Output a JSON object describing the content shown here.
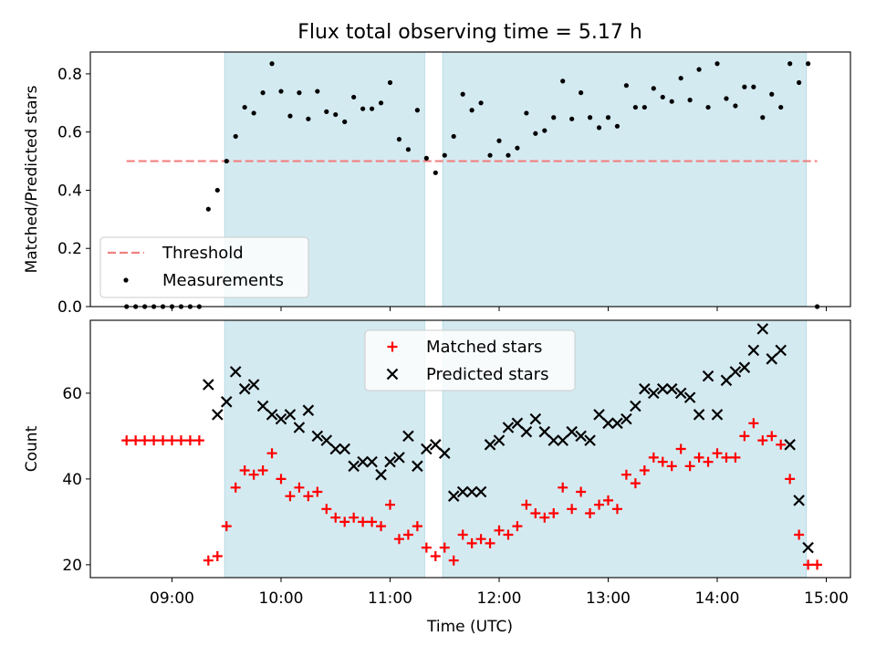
{
  "chart_data": {
    "type": "scatter",
    "title": "Flux total observing time = 5.17 h",
    "xlabel": "Time (UTC)",
    "x_ticks": [
      "09:00",
      "10:00",
      "11:00",
      "12:00",
      "13:00",
      "14:00",
      "15:00"
    ],
    "observing_windows": [
      [
        "09:29",
        "11:19"
      ],
      [
        "11:29",
        "14:49"
      ]
    ],
    "colors": {
      "window": "#d4eaf1",
      "threshold": "#f08080",
      "measurements": "#000000",
      "matched": "#ff0000",
      "predicted": "#000000"
    },
    "panels": [
      {
        "ylabel": "Matched/Predicted stars",
        "ylim": [
          0,
          0.875
        ],
        "y_ticks": [
          "0.0",
          "0.2",
          "0.4",
          "0.6",
          "0.8"
        ],
        "legend_position": "lower-left",
        "threshold": {
          "name": "Threshold",
          "value": 0.5,
          "x_range": [
            "08:35",
            "14:55"
          ]
        },
        "series": [
          {
            "name": "Measurements",
            "marker": "dot",
            "points": [
              [
                "08:35",
                0
              ],
              [
                "08:40",
                0
              ],
              [
                "08:45",
                0
              ],
              [
                "08:50",
                0
              ],
              [
                "08:55",
                0
              ],
              [
                "09:00",
                0
              ],
              [
                "09:05",
                0
              ],
              [
                "09:10",
                0
              ],
              [
                "09:15",
                0
              ],
              [
                "09:20",
                0.335
              ],
              [
                "09:25",
                0.4
              ],
              [
                "09:30",
                0.5
              ],
              [
                "09:35",
                0.585
              ],
              [
                "09:40",
                0.685
              ],
              [
                "09:45",
                0.665
              ],
              [
                "09:50",
                0.735
              ],
              [
                "09:55",
                0.835
              ],
              [
                "10:00",
                0.74
              ],
              [
                "10:05",
                0.655
              ],
              [
                "10:10",
                0.735
              ],
              [
                "10:15",
                0.645
              ],
              [
                "10:20",
                0.74
              ],
              [
                "10:25",
                0.67
              ],
              [
                "10:30",
                0.66
              ],
              [
                "10:35",
                0.635
              ],
              [
                "10:40",
                0.72
              ],
              [
                "10:45",
                0.68
              ],
              [
                "10:50",
                0.68
              ],
              [
                "10:55",
                0.7
              ],
              [
                "11:00",
                0.77
              ],
              [
                "11:05",
                0.575
              ],
              [
                "11:10",
                0.54
              ],
              [
                "11:15",
                0.675
              ],
              [
                "11:20",
                0.51
              ],
              [
                "11:25",
                0.46
              ],
              [
                "11:30",
                0.52
              ],
              [
                "11:35",
                0.585
              ],
              [
                "11:40",
                0.73
              ],
              [
                "11:45",
                0.675
              ],
              [
                "11:50",
                0.7
              ],
              [
                "11:55",
                0.52
              ],
              [
                "12:00",
                0.57
              ],
              [
                "12:05",
                0.52
              ],
              [
                "12:10",
                0.545
              ],
              [
                "12:15",
                0.665
              ],
              [
                "12:20",
                0.595
              ],
              [
                "12:25",
                0.605
              ],
              [
                "12:30",
                0.65
              ],
              [
                "12:35",
                0.775
              ],
              [
                "12:40",
                0.645
              ],
              [
                "12:45",
                0.735
              ],
              [
                "12:50",
                0.65
              ],
              [
                "12:55",
                0.615
              ],
              [
                "13:00",
                0.65
              ],
              [
                "13:05",
                0.62
              ],
              [
                "13:10",
                0.76
              ],
              [
                "13:15",
                0.685
              ],
              [
                "13:20",
                0.685
              ],
              [
                "13:25",
                0.75
              ],
              [
                "13:30",
                0.72
              ],
              [
                "13:35",
                0.705
              ],
              [
                "13:40",
                0.785
              ],
              [
                "13:45",
                0.71
              ],
              [
                "13:50",
                0.815
              ],
              [
                "13:55",
                0.685
              ],
              [
                "14:00",
                0.835
              ],
              [
                "14:05",
                0.715
              ],
              [
                "14:10",
                0.69
              ],
              [
                "14:15",
                0.755
              ],
              [
                "14:20",
                0.755
              ],
              [
                "14:25",
                0.65
              ],
              [
                "14:30",
                0.73
              ],
              [
                "14:35",
                0.685
              ],
              [
                "14:40",
                0.835
              ],
              [
                "14:45",
                0.77
              ],
              [
                "14:50",
                0.835
              ],
              [
                "14:55",
                0
              ]
            ]
          }
        ]
      },
      {
        "ylabel": "Count",
        "ylim": [
          17,
          77
        ],
        "y_ticks": [
          "20",
          "40",
          "60"
        ],
        "legend_position": "upper-center",
        "series": [
          {
            "name": "Matched stars",
            "marker": "plus",
            "points": [
              [
                "08:35",
                49
              ],
              [
                "08:40",
                49
              ],
              [
                "08:45",
                49
              ],
              [
                "08:50",
                49
              ],
              [
                "08:55",
                49
              ],
              [
                "09:00",
                49
              ],
              [
                "09:05",
                49
              ],
              [
                "09:10",
                49
              ],
              [
                "09:15",
                49
              ],
              [
                "09:20",
                21
              ],
              [
                "09:25",
                22
              ],
              [
                "09:30",
                29
              ],
              [
                "09:35",
                38
              ],
              [
                "09:40",
                42
              ],
              [
                "09:45",
                41
              ],
              [
                "09:50",
                42
              ],
              [
                "09:55",
                46
              ],
              [
                "10:00",
                40
              ],
              [
                "10:05",
                36
              ],
              [
                "10:10",
                38
              ],
              [
                "10:15",
                36
              ],
              [
                "10:20",
                37
              ],
              [
                "10:25",
                33
              ],
              [
                "10:30",
                31
              ],
              [
                "10:35",
                30
              ],
              [
                "10:40",
                31
              ],
              [
                "10:45",
                30
              ],
              [
                "10:50",
                30
              ],
              [
                "10:55",
                29
              ],
              [
                "11:00",
                34
              ],
              [
                "11:05",
                26
              ],
              [
                "11:10",
                27
              ],
              [
                "11:15",
                29
              ],
              [
                "11:20",
                24
              ],
              [
                "11:25",
                22
              ],
              [
                "11:30",
                24
              ],
              [
                "11:35",
                21
              ],
              [
                "11:40",
                27
              ],
              [
                "11:45",
                25
              ],
              [
                "11:50",
                26
              ],
              [
                "11:55",
                25
              ],
              [
                "12:00",
                28
              ],
              [
                "12:05",
                27
              ],
              [
                "12:10",
                29
              ],
              [
                "12:15",
                34
              ],
              [
                "12:20",
                32
              ],
              [
                "12:25",
                31
              ],
              [
                "12:30",
                32
              ],
              [
                "12:35",
                38
              ],
              [
                "12:40",
                33
              ],
              [
                "12:45",
                37
              ],
              [
                "12:50",
                32
              ],
              [
                "12:55",
                34
              ],
              [
                "13:00",
                35
              ],
              [
                "13:05",
                33
              ],
              [
                "13:10",
                41
              ],
              [
                "13:15",
                39
              ],
              [
                "13:20",
                42
              ],
              [
                "13:25",
                45
              ],
              [
                "13:30",
                44
              ],
              [
                "13:35",
                43
              ],
              [
                "13:40",
                47
              ],
              [
                "13:45",
                43
              ],
              [
                "13:50",
                45
              ],
              [
                "13:55",
                44
              ],
              [
                "14:00",
                46
              ],
              [
                "14:05",
                45
              ],
              [
                "14:10",
                45
              ],
              [
                "14:15",
                50
              ],
              [
                "14:20",
                53
              ],
              [
                "14:25",
                49
              ],
              [
                "14:30",
                50
              ],
              [
                "14:35",
                48
              ],
              [
                "14:40",
                40
              ],
              [
                "14:45",
                27
              ],
              [
                "14:50",
                20
              ],
              [
                "14:55",
                20
              ]
            ]
          },
          {
            "name": "Predicted stars",
            "marker": "x",
            "points": [
              [
                "09:20",
                62
              ],
              [
                "09:25",
                55
              ],
              [
                "09:30",
                58
              ],
              [
                "09:35",
                65
              ],
              [
                "09:40",
                61
              ],
              [
                "09:45",
                62
              ],
              [
                "09:50",
                57
              ],
              [
                "09:55",
                55
              ],
              [
                "10:00",
                54
              ],
              [
                "10:05",
                55
              ],
              [
                "10:10",
                52
              ],
              [
                "10:15",
                56
              ],
              [
                "10:20",
                50
              ],
              [
                "10:25",
                49
              ],
              [
                "10:30",
                47
              ],
              [
                "10:35",
                47
              ],
              [
                "10:40",
                43
              ],
              [
                "10:45",
                44
              ],
              [
                "10:50",
                44
              ],
              [
                "10:55",
                41
              ],
              [
                "11:00",
                44
              ],
              [
                "11:05",
                45
              ],
              [
                "11:10",
                50
              ],
              [
                "11:15",
                43
              ],
              [
                "11:20",
                47
              ],
              [
                "11:25",
                48
              ],
              [
                "11:30",
                46
              ],
              [
                "11:35",
                36
              ],
              [
                "11:40",
                37
              ],
              [
                "11:45",
                37
              ],
              [
                "11:50",
                37
              ],
              [
                "11:55",
                48
              ],
              [
                "12:00",
                49
              ],
              [
                "12:05",
                52
              ],
              [
                "12:10",
                53
              ],
              [
                "12:15",
                51
              ],
              [
                "12:20",
                54
              ],
              [
                "12:25",
                51
              ],
              [
                "12:30",
                49
              ],
              [
                "12:35",
                49
              ],
              [
                "12:40",
                51
              ],
              [
                "12:45",
                50
              ],
              [
                "12:50",
                49
              ],
              [
                "12:55",
                55
              ],
              [
                "13:00",
                53
              ],
              [
                "13:05",
                53
              ],
              [
                "13:10",
                54
              ],
              [
                "13:15",
                57
              ],
              [
                "13:20",
                61
              ],
              [
                "13:25",
                60
              ],
              [
                "13:30",
                61
              ],
              [
                "13:35",
                61
              ],
              [
                "13:40",
                60
              ],
              [
                "13:45",
                59
              ],
              [
                "13:50",
                55
              ],
              [
                "13:55",
                64
              ],
              [
                "14:00",
                55
              ],
              [
                "14:05",
                63
              ],
              [
                "14:10",
                65
              ],
              [
                "14:15",
                66
              ],
              [
                "14:20",
                70
              ],
              [
                "14:25",
                75
              ],
              [
                "14:30",
                68
              ],
              [
                "14:35",
                70
              ],
              [
                "14:40",
                48
              ],
              [
                "14:45",
                35
              ],
              [
                "14:50",
                24
              ]
            ]
          }
        ]
      }
    ]
  }
}
